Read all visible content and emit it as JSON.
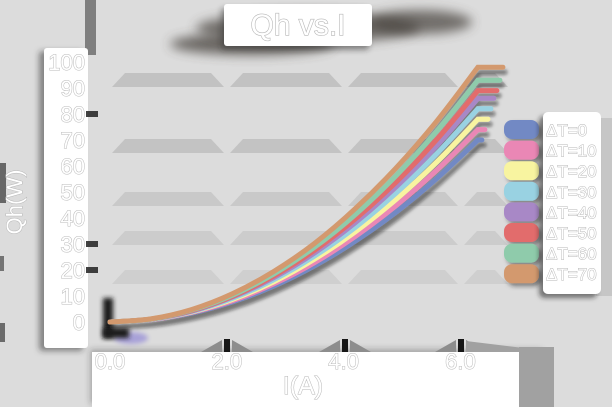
{
  "background_color": "#dcdcdc",
  "chart_data": {
    "type": "line",
    "title": "Qh vs.I",
    "xlabel": "I(A)",
    "ylabel": "Qh(W)",
    "xlim": [
      0,
      6.9
    ],
    "ylim": [
      0,
      100
    ],
    "grid": true,
    "legend_position": "right",
    "xticks_labels": [
      "0.0",
      "2.0",
      "4.0",
      "6.0"
    ],
    "xticks_values": [
      0,
      2,
      4,
      6
    ],
    "yticks_labels": [
      "0",
      "10",
      "20",
      "30",
      "40",
      "50",
      "60",
      "70",
      "80",
      "90",
      "100"
    ],
    "yticks_values": [
      0,
      10,
      20,
      30,
      40,
      50,
      60,
      70,
      80,
      90,
      100
    ],
    "x": [
      0,
      0.7,
      1.4,
      2.1,
      2.8,
      3.5,
      4.2,
      4.9,
      5.6,
      6.3
    ],
    "series": [
      {
        "name": "ΔT=0",
        "color": "#7289c4",
        "values": [
          0,
          0.9,
          3.5,
          7.8,
          13.8,
          21.6,
          31.1,
          42.3,
          55.3,
          70
        ]
      },
      {
        "name": "ΔT=10",
        "color": "#ea87b5",
        "values": [
          0,
          0.9,
          3.7,
          8.2,
          14.6,
          22.8,
          32.9,
          44.8,
          58.5,
          74
        ]
      },
      {
        "name": "ΔT=20",
        "color": "#f8f4a0",
        "values": [
          0,
          1.0,
          3.9,
          8.7,
          15.4,
          24.1,
          34.7,
          47.2,
          61.6,
          78
        ]
      },
      {
        "name": "ΔT=30",
        "color": "#99d2e2",
        "values": [
          0,
          1.0,
          4.0,
          9.1,
          16.2,
          25.3,
          36.4,
          49.6,
          64.8,
          82
        ]
      },
      {
        "name": "ΔT=40",
        "color": "#a888c6",
        "values": [
          0,
          1.1,
          4.2,
          9.6,
          17.0,
          26.5,
          38.2,
          52.0,
          67.9,
          86
        ]
      },
      {
        "name": "ΔT=50",
        "color": "#e26c6c",
        "values": [
          0,
          1.1,
          4.4,
          9.9,
          17.6,
          27.5,
          39.6,
          53.8,
          70.3,
          89
        ]
      },
      {
        "name": "ΔT=60",
        "color": "#8fcbab",
        "values": [
          0,
          1.1,
          4.6,
          10.3,
          18.4,
          28.7,
          41.3,
          56.3,
          73.5,
          93
        ]
      },
      {
        "name": "ΔT=70",
        "color": "#d3996e",
        "values": [
          0,
          1.2,
          4.8,
          10.9,
          19.4,
          30.2,
          43.6,
          59.3,
          77.4,
          98
        ]
      }
    ]
  }
}
